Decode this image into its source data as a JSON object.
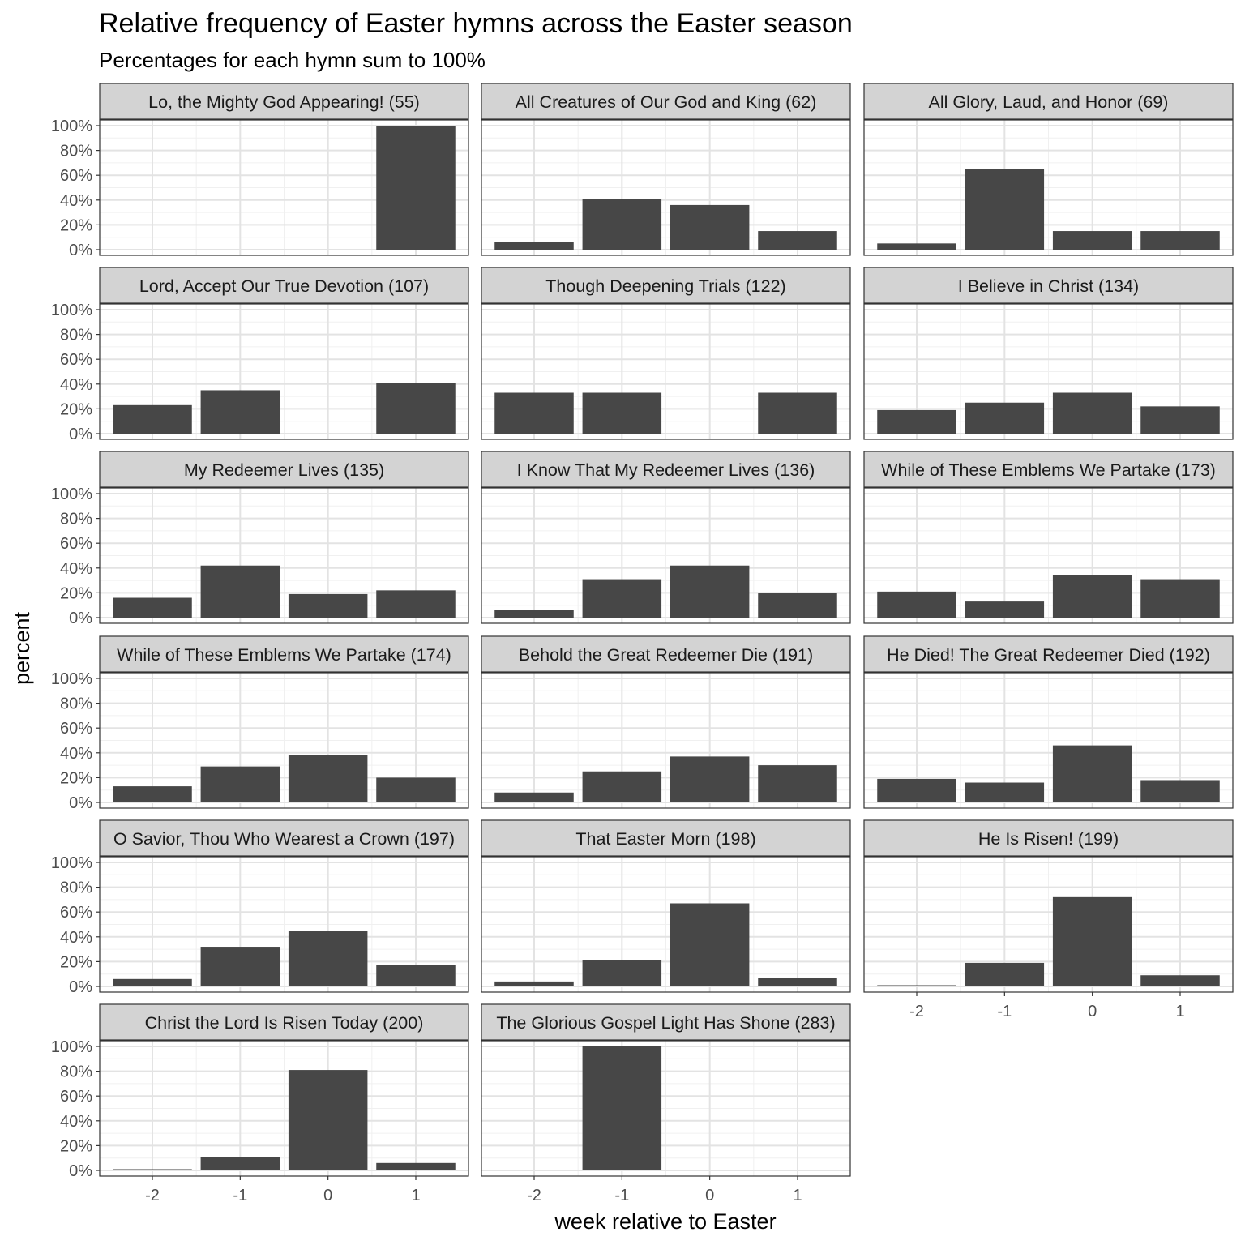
{
  "chart_data": {
    "type": "bar",
    "title": "Relative frequency of Easter hymns across the Easter season",
    "subtitle": "Percentages for each hymn sum to 100%",
    "xlabel": "week relative to Easter",
    "ylabel": "percent",
    "categories": [
      -2,
      -1,
      0,
      1
    ],
    "x_tick_labels": [
      "-2",
      "-1",
      "0",
      "1"
    ],
    "y_ticks": [
      0,
      20,
      40,
      60,
      80,
      100
    ],
    "y_tick_labels": [
      "0%",
      "20%",
      "40%",
      "60%",
      "80%",
      "100%"
    ],
    "ylim": [
      0,
      100
    ],
    "bar_color": "#474747",
    "strip_color": "#d3d3d3",
    "grid": true,
    "facets": [
      {
        "label": "Lo, the Mighty God Appearing! (55)",
        "values": [
          0,
          0,
          0,
          100
        ]
      },
      {
        "label": "All Creatures of Our God and King (62)",
        "values": [
          6,
          41,
          36,
          15
        ]
      },
      {
        "label": "All Glory, Laud, and Honor (69)",
        "values": [
          5,
          65,
          15,
          15
        ]
      },
      {
        "label": "Lord, Accept Our True Devotion (107)",
        "values": [
          23,
          35,
          0,
          41
        ]
      },
      {
        "label": "Though Deepening Trials (122)",
        "values": [
          33,
          33,
          0,
          33
        ]
      },
      {
        "label": "I Believe in Christ (134)",
        "values": [
          19,
          25,
          33,
          22
        ]
      },
      {
        "label": "My Redeemer Lives (135)",
        "values": [
          16,
          42,
          19,
          22
        ]
      },
      {
        "label": "I Know That My Redeemer Lives (136)",
        "values": [
          6,
          31,
          42,
          20
        ]
      },
      {
        "label": "While of These Emblems We Partake (173)",
        "values": [
          21,
          13,
          34,
          31
        ]
      },
      {
        "label": "While of These Emblems We Partake (174)",
        "values": [
          13,
          29,
          38,
          20
        ]
      },
      {
        "label": "Behold the Great Redeemer Die (191)",
        "values": [
          8,
          25,
          37,
          30
        ]
      },
      {
        "label": "He Died! The Great Redeemer Died (192)",
        "values": [
          19,
          16,
          46,
          18
        ]
      },
      {
        "label": "O Savior, Thou Who Wearest a Crown (197)",
        "values": [
          6,
          32,
          45,
          17
        ]
      },
      {
        "label": "That Easter Morn (198)",
        "values": [
          4,
          21,
          67,
          7
        ]
      },
      {
        "label": "He Is Risen! (199)",
        "values": [
          1,
          19,
          72,
          9
        ]
      },
      {
        "label": "Christ the Lord Is Risen Today (200)",
        "values": [
          1,
          11,
          81,
          6
        ]
      },
      {
        "label": "The Glorious Gospel Light Has Shone (283)",
        "values": [
          0,
          100,
          0,
          0
        ]
      }
    ]
  }
}
